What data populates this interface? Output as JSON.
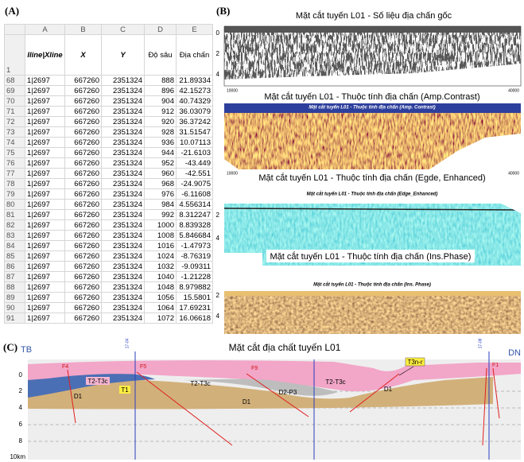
{
  "panel_a": {
    "label": "(A)",
    "column_letters": [
      "A",
      "B",
      "C",
      "D",
      "E"
    ],
    "header_row_number": "1",
    "headers": [
      "Iline|Xline",
      "X",
      "Y",
      "Độ sâu",
      "Địa chấn"
    ],
    "rows": [
      {
        "row": "68",
        "cells": [
          "1|2697",
          "667260",
          "2351324",
          "888",
          "21.89334"
        ]
      },
      {
        "row": "69",
        "cells": [
          "1|2697",
          "667260",
          "2351324",
          "896",
          "42.15273"
        ]
      },
      {
        "row": "70",
        "cells": [
          "1|2697",
          "667260",
          "2351324",
          "904",
          "40.74329"
        ]
      },
      {
        "row": "71",
        "cells": [
          "1|2697",
          "667260",
          "2351324",
          "912",
          "36.03079"
        ]
      },
      {
        "row": "72",
        "cells": [
          "1|2697",
          "667260",
          "2351324",
          "920",
          "36.37242"
        ]
      },
      {
        "row": "73",
        "cells": [
          "1|2697",
          "667260",
          "2351324",
          "928",
          "31.51547"
        ]
      },
      {
        "row": "74",
        "cells": [
          "1|2697",
          "667260",
          "2351324",
          "936",
          "10.07113"
        ]
      },
      {
        "row": "75",
        "cells": [
          "1|2697",
          "667260",
          "2351324",
          "944",
          "-21.6103"
        ]
      },
      {
        "row": "76",
        "cells": [
          "1|2697",
          "667260",
          "2351324",
          "952",
          "-43.449"
        ]
      },
      {
        "row": "77",
        "cells": [
          "1|2697",
          "667260",
          "2351324",
          "960",
          "-42.551"
        ]
      },
      {
        "row": "78",
        "cells": [
          "1|2697",
          "667260",
          "2351324",
          "968",
          "-24.9075"
        ]
      },
      {
        "row": "79",
        "cells": [
          "1|2697",
          "667260",
          "2351324",
          "976",
          "-6.11608"
        ]
      },
      {
        "row": "80",
        "cells": [
          "1|2697",
          "667260",
          "2351324",
          "984",
          "4.556314"
        ]
      },
      {
        "row": "81",
        "cells": [
          "1|2697",
          "667260",
          "2351324",
          "992",
          "8.312247"
        ]
      },
      {
        "row": "82",
        "cells": [
          "1|2697",
          "667260",
          "2351324",
          "1000",
          "8.839328"
        ]
      },
      {
        "row": "83",
        "cells": [
          "1|2697",
          "667260",
          "2351324",
          "1008",
          "5.846684"
        ]
      },
      {
        "row": "84",
        "cells": [
          "1|2697",
          "667260",
          "2351324",
          "1016",
          "-1.47973"
        ]
      },
      {
        "row": "85",
        "cells": [
          "1|2697",
          "667260",
          "2351324",
          "1024",
          "-8.76319"
        ]
      },
      {
        "row": "86",
        "cells": [
          "1|2697",
          "667260",
          "2351324",
          "1032",
          "-9.09311"
        ]
      },
      {
        "row": "87",
        "cells": [
          "1|2697",
          "667260",
          "2351324",
          "1040",
          "-1.21228"
        ]
      },
      {
        "row": "88",
        "cells": [
          "1|2697",
          "667260",
          "2351324",
          "1048",
          "8.979882"
        ]
      },
      {
        "row": "89",
        "cells": [
          "1|2697",
          "667260",
          "2351324",
          "1056",
          "15.5801"
        ]
      },
      {
        "row": "90",
        "cells": [
          "1|2697",
          "667260",
          "2351324",
          "1064",
          "17.69231"
        ]
      },
      {
        "row": "91",
        "cells": [
          "1|2697",
          "667260",
          "2351324",
          "1072",
          "16.06618"
        ]
      }
    ]
  },
  "panel_b": {
    "label": "(B)",
    "sections": [
      {
        "title": "Mặt cắt tuyến L01 - Số liệu địa chấn gốc",
        "depth_ticks": [
          "0",
          "2",
          "4"
        ],
        "x_ticks": [
          "10000",
          "40000"
        ]
      },
      {
        "title": "Mặt cắt tuyến L01 - Thuộc tính địa chấn (Amp.Contrast)",
        "inner_title": "Mặt cắt tuyến L01 - Thuộc tính địa chấn (Amp. Contrast)",
        "x_ticks": [
          "10000",
          "40000"
        ]
      },
      {
        "title": "Mặt cắt tuyến L01 - Thuộc tính địa chấn (Egde, Enhanced)",
        "inner_title": "Mặt cắt tuyến L01 - Thuộc tính địa chấn (Edge_Enhanced)",
        "depth_ticks": [
          "2",
          "4"
        ]
      },
      {
        "title": "Mặt cắt tuyến L01 - Thuộc tính địa chấn (Ins.Phase)",
        "inner_title": "Mặt cắt tuyến L01 - Thuộc tính địa chấn (Ins. Phase)",
        "depth_ticks": [
          "2",
          "4"
        ]
      }
    ]
  },
  "panel_c": {
    "label": "(C)",
    "title": "Mặt cắt địa chất tuyến L01",
    "left_end": "TB",
    "right_end": "DN",
    "depth_ticks": [
      "0",
      "2",
      "4",
      "6",
      "8",
      "10km"
    ],
    "wells": [
      "17-04",
      "17-08"
    ],
    "faults": [
      "F4",
      "F5",
      "F9",
      "F1"
    ],
    "layers": [
      "T2-T3c",
      "T1",
      "D1",
      "T2-T3c",
      "D2-P3",
      "D1",
      "T2-T3c",
      "D1",
      "T3n-r"
    ]
  }
}
